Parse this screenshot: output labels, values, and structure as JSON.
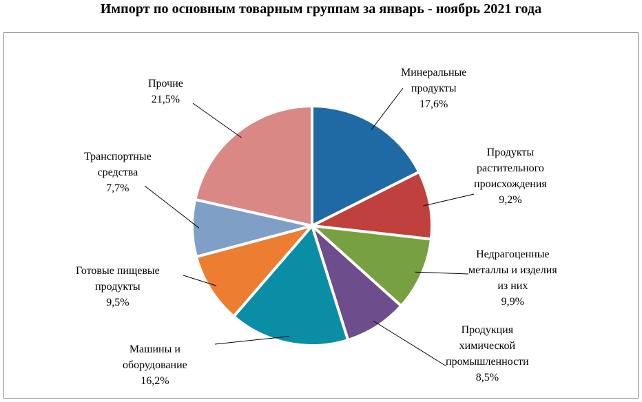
{
  "title": "Импорт по основным товарным группам за январь - ноябрь 2021 года",
  "chart_data": {
    "type": "pie",
    "title": "Импорт по основным товарным группам за январь - ноябрь 2021 года",
    "legend": "none",
    "slices": [
      {
        "label_lines": [
          "Минеральные",
          "продукты"
        ],
        "value": 17.6,
        "value_label": "17,6%",
        "color": "#1f6aa5"
      },
      {
        "label_lines": [
          "Продукты",
          "растительного",
          "происхождения"
        ],
        "value": 9.2,
        "value_label": "9,2%",
        "color": "#c0403d"
      },
      {
        "label_lines": [
          "Недрагоценные",
          "металлы и изделия",
          "из них"
        ],
        "value": 9.9,
        "value_label": "9,9%",
        "color": "#77a040"
      },
      {
        "label_lines": [
          "Продукция",
          "химической",
          "промышленности"
        ],
        "value": 8.5,
        "value_label": "8,5%",
        "color": "#6e4d8c"
      },
      {
        "label_lines": [
          "Машины и",
          "оборудование"
        ],
        "value": 16.2,
        "value_label": "16,2%",
        "color": "#0a8ea5"
      },
      {
        "label_lines": [
          "Готовые пищевые",
          "продукты"
        ],
        "value": 9.5,
        "value_label": "9,5%",
        "color": "#ed7d31"
      },
      {
        "label_lines": [
          "Транспортные",
          "средства"
        ],
        "value": 7.7,
        "value_label": "7,7%",
        "color": "#7f9fc7"
      },
      {
        "label_lines": [
          "Прочие"
        ],
        "value": 21.5,
        "value_label": "21,5%",
        "color": "#d98886"
      }
    ]
  }
}
